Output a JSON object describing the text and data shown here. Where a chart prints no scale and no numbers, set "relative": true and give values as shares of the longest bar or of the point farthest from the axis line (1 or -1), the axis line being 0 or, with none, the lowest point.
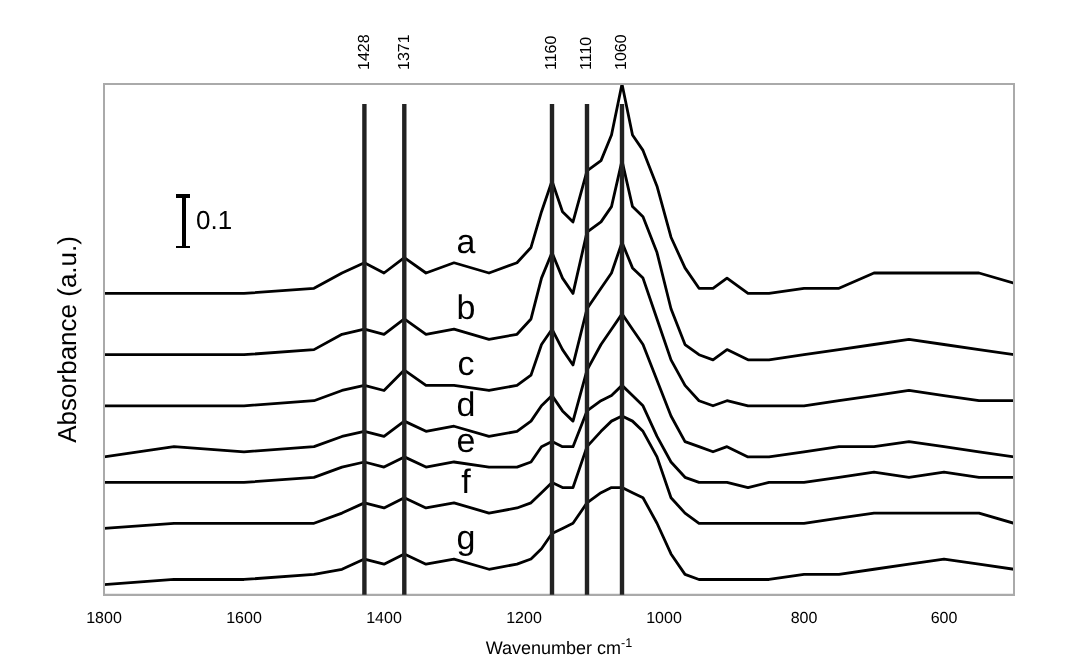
{
  "chart_data": {
    "type": "line",
    "xlabel": "Wavenumber cm$^{-1}$",
    "ylabel": "Absorbance (a.u.)",
    "relative": true,
    "x": [
      1800,
      1700,
      1600,
      1500,
      1460,
      1428,
      1400,
      1371,
      1340,
      1300,
      1250,
      1210,
      1190,
      1175,
      1160,
      1145,
      1130,
      1110,
      1090,
      1075,
      1060,
      1045,
      1030,
      1010,
      990,
      970,
      950,
      930,
      910,
      880,
      850,
      800,
      750,
      700,
      650,
      600,
      550,
      500
    ],
    "xlim": [
      1800,
      500
    ],
    "xticks": [
      1800,
      1600,
      1400,
      1200,
      1000,
      800,
      600
    ],
    "series": [
      {
        "name": "a",
        "color": "#000000",
        "values": [
          0.59,
          0.59,
          0.59,
          0.6,
          0.63,
          0.65,
          0.63,
          0.66,
          0.63,
          0.65,
          0.63,
          0.65,
          0.68,
          0.75,
          0.81,
          0.75,
          0.73,
          0.83,
          0.85,
          0.9,
          1,
          0.9,
          0.87,
          0.8,
          0.7,
          0.64,
          0.6,
          0.6,
          0.62,
          0.59,
          0.59,
          0.6,
          0.6,
          0.63,
          0.63,
          0.63,
          0.63,
          0.61
        ]
      },
      {
        "name": "b",
        "color": "#000000",
        "values": [
          0.47,
          0.47,
          0.47,
          0.48,
          0.51,
          0.52,
          0.51,
          0.54,
          0.51,
          0.52,
          0.5,
          0.51,
          0.54,
          0.62,
          0.67,
          0.62,
          0.59,
          0.71,
          0.73,
          0.76,
          0.85,
          0.76,
          0.74,
          0.67,
          0.56,
          0.49,
          0.47,
          0.46,
          0.48,
          0.46,
          0.46,
          0.47,
          0.48,
          0.49,
          0.5,
          0.49,
          0.48,
          0.47
        ]
      },
      {
        "name": "c",
        "color": "#000000",
        "values": [
          0.37,
          0.37,
          0.37,
          0.38,
          0.4,
          0.41,
          0.4,
          0.44,
          0.41,
          0.41,
          0.4,
          0.41,
          0.43,
          0.49,
          0.52,
          0.48,
          0.45,
          0.56,
          0.6,
          0.63,
          0.69,
          0.64,
          0.62,
          0.54,
          0.46,
          0.41,
          0.38,
          0.37,
          0.38,
          0.37,
          0.37,
          0.37,
          0.38,
          0.39,
          0.4,
          0.39,
          0.38,
          0.38
        ]
      },
      {
        "name": "d",
        "color": "#000000",
        "values": [
          0.27,
          0.29,
          0.28,
          0.29,
          0.31,
          0.32,
          0.31,
          0.34,
          0.32,
          0.33,
          0.31,
          0.32,
          0.34,
          0.37,
          0.39,
          0.36,
          0.34,
          0.44,
          0.49,
          0.52,
          0.55,
          0.52,
          0.49,
          0.42,
          0.35,
          0.3,
          0.29,
          0.28,
          0.29,
          0.27,
          0.27,
          0.28,
          0.29,
          0.29,
          0.3,
          0.29,
          0.28,
          0.27
        ]
      },
      {
        "name": "e",
        "color": "#000000",
        "values": [
          0.22,
          0.22,
          0.22,
          0.23,
          0.25,
          0.26,
          0.25,
          0.27,
          0.25,
          0.26,
          0.25,
          0.25,
          0.26,
          0.29,
          0.3,
          0.29,
          0.29,
          0.36,
          0.38,
          0.39,
          0.41,
          0.39,
          0.37,
          0.31,
          0.26,
          0.23,
          0.22,
          0.22,
          0.22,
          0.21,
          0.22,
          0.22,
          0.23,
          0.24,
          0.23,
          0.24,
          0.23,
          0.23
        ]
      },
      {
        "name": "f",
        "color": "#000000",
        "values": [
          0.13,
          0.14,
          0.14,
          0.14,
          0.16,
          0.18,
          0.17,
          0.19,
          0.17,
          0.18,
          0.16,
          0.17,
          0.18,
          0.2,
          0.22,
          0.21,
          0.21,
          0.29,
          0.32,
          0.34,
          0.35,
          0.34,
          0.32,
          0.27,
          0.19,
          0.16,
          0.14,
          0.14,
          0.14,
          0.14,
          0.14,
          0.14,
          0.15,
          0.16,
          0.16,
          0.16,
          0.16,
          0.14
        ]
      },
      {
        "name": "g",
        "color": "#000000",
        "values": [
          0.02,
          0.03,
          0.03,
          0.04,
          0.05,
          0.07,
          0.06,
          0.08,
          0.06,
          0.07,
          0.05,
          0.06,
          0.07,
          0.09,
          0.12,
          0.13,
          0.14,
          0.18,
          0.2,
          0.21,
          0.21,
          0.2,
          0.19,
          0.14,
          0.08,
          0.04,
          0.03,
          0.03,
          0.03,
          0.03,
          0.03,
          0.04,
          0.04,
          0.05,
          0.06,
          0.07,
          0.06,
          0.05
        ]
      }
    ],
    "ref_lines": [
      {
        "axis": "x",
        "value": 1428,
        "label": "1428"
      },
      {
        "axis": "x",
        "value": 1371,
        "label": "1371"
      },
      {
        "axis": "x",
        "value": 1160,
        "label": "1160"
      },
      {
        "axis": "x",
        "value": 1110,
        "label": "1110"
      },
      {
        "axis": "x",
        "value": 1060,
        "label": "1060"
      }
    ],
    "annotations": [
      "0.1"
    ],
    "grid": false,
    "legend": false,
    "marker": "none",
    "line_style": "solid"
  }
}
